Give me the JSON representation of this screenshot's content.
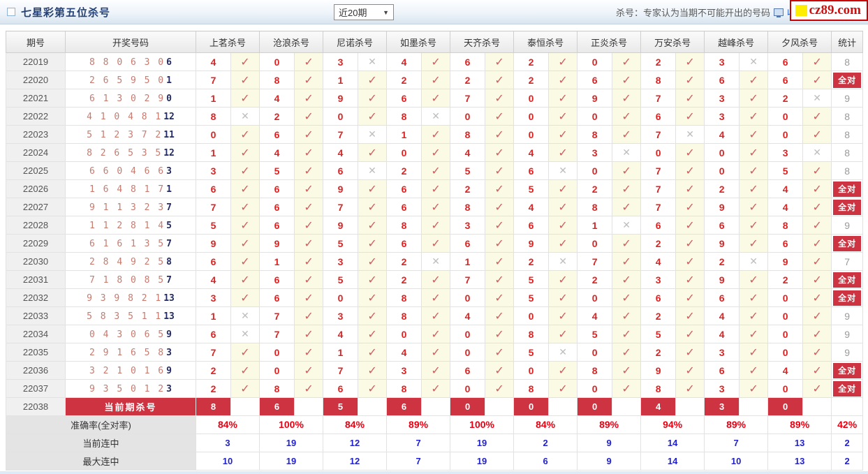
{
  "colors": {
    "accent_red": "#cd3340",
    "kill_number_red": "#dd2222",
    "accuracy_red": "#e60012",
    "streak_blue": "#2222cc",
    "draw_digit_salmon": "#c87a6e",
    "draw_last_navy": "#222a66",
    "hit_cell_bg": "#fbfae4",
    "logo_yellow": "#ffee00",
    "logo_red": "#cc1111"
  },
  "header": {
    "title": "七星彩第五位杀号",
    "period_select_value": "近20期",
    "note": "杀号：专家认为当期不可能开出的号码",
    "favorite_label": "收藏",
    "logo_text": "cz89.com"
  },
  "table": {
    "col_period": "期号",
    "col_draw": "开奖号码",
    "col_stat": "统计",
    "experts": [
      "上茗杀号",
      "沧浪杀号",
      "尼诺杀号",
      "如墨杀号",
      "天齐杀号",
      "泰恒杀号",
      "正炎杀号",
      "万安杀号",
      "越峰杀号",
      "夕风杀号"
    ],
    "all_correct_label": "全对",
    "rows": [
      {
        "period": "22019",
        "draw": "8 8 0 6 3 0",
        "last": "6",
        "kills": [
          "4",
          "0",
          "3",
          "4",
          "6",
          "2",
          "0",
          "2",
          "3",
          "6"
        ],
        "hits": [
          1,
          1,
          0,
          1,
          1,
          1,
          1,
          1,
          0,
          1
        ],
        "stat": "8"
      },
      {
        "period": "22020",
        "draw": "2 6 5 9 5 0",
        "last": "1",
        "kills": [
          "7",
          "8",
          "1",
          "2",
          "2",
          "2",
          "6",
          "8",
          "6",
          "6"
        ],
        "hits": [
          1,
          1,
          1,
          1,
          1,
          1,
          1,
          1,
          1,
          1
        ],
        "stat": "全对"
      },
      {
        "period": "22021",
        "draw": "6 1 3 0 2 9",
        "last": "0",
        "kills": [
          "1",
          "4",
          "9",
          "6",
          "7",
          "0",
          "9",
          "7",
          "3",
          "2"
        ],
        "hits": [
          1,
          1,
          1,
          1,
          1,
          1,
          1,
          1,
          1,
          0
        ],
        "stat": "9"
      },
      {
        "period": "22022",
        "draw": "4 1 0 4 8 1",
        "last": "12",
        "kills": [
          "8",
          "2",
          "0",
          "8",
          "0",
          "0",
          "0",
          "6",
          "3",
          "0"
        ],
        "hits": [
          0,
          1,
          1,
          0,
          1,
          1,
          1,
          1,
          1,
          1
        ],
        "stat": "8"
      },
      {
        "period": "22023",
        "draw": "5 1 2 3 7 2",
        "last": "11",
        "kills": [
          "0",
          "6",
          "7",
          "1",
          "8",
          "0",
          "8",
          "7",
          "4",
          "0"
        ],
        "hits": [
          1,
          1,
          0,
          1,
          1,
          1,
          1,
          0,
          1,
          1
        ],
        "stat": "8"
      },
      {
        "period": "22024",
        "draw": "8 2 6 5 3 5",
        "last": "12",
        "kills": [
          "1",
          "4",
          "4",
          "0",
          "4",
          "4",
          "3",
          "0",
          "0",
          "3"
        ],
        "hits": [
          1,
          1,
          1,
          1,
          1,
          1,
          0,
          1,
          1,
          0
        ],
        "stat": "8"
      },
      {
        "period": "22025",
        "draw": "6 6 0 4 6 6",
        "last": "3",
        "kills": [
          "3",
          "5",
          "6",
          "2",
          "5",
          "6",
          "0",
          "7",
          "0",
          "5"
        ],
        "hits": [
          1,
          1,
          0,
          1,
          1,
          0,
          1,
          1,
          1,
          1
        ],
        "stat": "8"
      },
      {
        "period": "22026",
        "draw": "1 6 4 8 1 7",
        "last": "1",
        "kills": [
          "6",
          "6",
          "9",
          "6",
          "2",
          "5",
          "2",
          "7",
          "2",
          "4"
        ],
        "hits": [
          1,
          1,
          1,
          1,
          1,
          1,
          1,
          1,
          1,
          1
        ],
        "stat": "全对"
      },
      {
        "period": "22027",
        "draw": "9 1 1 3 2 3",
        "last": "7",
        "kills": [
          "7",
          "6",
          "7",
          "6",
          "8",
          "4",
          "8",
          "7",
          "9",
          "4"
        ],
        "hits": [
          1,
          1,
          1,
          1,
          1,
          1,
          1,
          1,
          1,
          1
        ],
        "stat": "全对"
      },
      {
        "period": "22028",
        "draw": "1 1 2 8 1 4",
        "last": "5",
        "kills": [
          "5",
          "6",
          "9",
          "8",
          "3",
          "6",
          "1",
          "6",
          "6",
          "8"
        ],
        "hits": [
          1,
          1,
          1,
          1,
          1,
          1,
          0,
          1,
          1,
          1
        ],
        "stat": "9"
      },
      {
        "period": "22029",
        "draw": "6 1 6 1 3 5",
        "last": "7",
        "kills": [
          "9",
          "9",
          "5",
          "6",
          "6",
          "9",
          "0",
          "2",
          "9",
          "6"
        ],
        "hits": [
          1,
          1,
          1,
          1,
          1,
          1,
          1,
          1,
          1,
          1
        ],
        "stat": "全对"
      },
      {
        "period": "22030",
        "draw": "2 8 4 9 2 5",
        "last": "8",
        "kills": [
          "6",
          "1",
          "3",
          "2",
          "1",
          "2",
          "7",
          "4",
          "2",
          "9"
        ],
        "hits": [
          1,
          1,
          1,
          0,
          1,
          0,
          1,
          1,
          0,
          1
        ],
        "stat": "7"
      },
      {
        "period": "22031",
        "draw": "7 1 8 0 8 5",
        "last": "7",
        "kills": [
          "4",
          "6",
          "5",
          "2",
          "7",
          "5",
          "2",
          "3",
          "9",
          "2"
        ],
        "hits": [
          1,
          1,
          1,
          1,
          1,
          1,
          1,
          1,
          1,
          1
        ],
        "stat": "全对"
      },
      {
        "period": "22032",
        "draw": "9 3 9 8 2 1",
        "last": "13",
        "kills": [
          "3",
          "6",
          "0",
          "8",
          "0",
          "5",
          "0",
          "6",
          "6",
          "0"
        ],
        "hits": [
          1,
          1,
          1,
          1,
          1,
          1,
          1,
          1,
          1,
          1
        ],
        "stat": "全对"
      },
      {
        "period": "22033",
        "draw": "5 8 3 5 1 1",
        "last": "13",
        "kills": [
          "1",
          "7",
          "3",
          "8",
          "4",
          "0",
          "4",
          "2",
          "4",
          "0"
        ],
        "hits": [
          0,
          1,
          1,
          1,
          1,
          1,
          1,
          1,
          1,
          1
        ],
        "stat": "9"
      },
      {
        "period": "22034",
        "draw": "0 4 3 0 6 5",
        "last": "9",
        "kills": [
          "6",
          "7",
          "4",
          "0",
          "0",
          "8",
          "5",
          "5",
          "4",
          "0"
        ],
        "hits": [
          0,
          1,
          1,
          1,
          1,
          1,
          1,
          1,
          1,
          1
        ],
        "stat": "9"
      },
      {
        "period": "22035",
        "draw": "2 9 1 6 5 8",
        "last": "3",
        "kills": [
          "7",
          "0",
          "1",
          "4",
          "0",
          "5",
          "0",
          "2",
          "3",
          "0"
        ],
        "hits": [
          1,
          1,
          1,
          1,
          1,
          0,
          1,
          1,
          1,
          1
        ],
        "stat": "9"
      },
      {
        "period": "22036",
        "draw": "3 2 1 0 1 6",
        "last": "9",
        "kills": [
          "2",
          "0",
          "7",
          "3",
          "6",
          "0",
          "8",
          "9",
          "6",
          "4"
        ],
        "hits": [
          1,
          1,
          1,
          1,
          1,
          1,
          1,
          1,
          1,
          1
        ],
        "stat": "全对"
      },
      {
        "period": "22037",
        "draw": "9 3 5 0 1 2",
        "last": "3",
        "kills": [
          "2",
          "8",
          "6",
          "8",
          "0",
          "8",
          "0",
          "8",
          "3",
          "0"
        ],
        "hits": [
          1,
          1,
          1,
          1,
          1,
          1,
          1,
          1,
          1,
          1
        ],
        "stat": "全对"
      }
    ],
    "current_row": {
      "period": "22038",
      "label": "当前期杀号",
      "kills": [
        "8",
        "6",
        "5",
        "6",
        "0",
        "0",
        "0",
        "4",
        "3",
        "0"
      ]
    },
    "footer_rows": [
      {
        "label": "准确率(全对率)",
        "style": "red",
        "values": [
          "84%",
          "100%",
          "84%",
          "89%",
          "100%",
          "84%",
          "89%",
          "94%",
          "89%",
          "89%"
        ],
        "stat": "42%"
      },
      {
        "label": "当前连中",
        "style": "blue",
        "values": [
          "3",
          "19",
          "12",
          "7",
          "19",
          "2",
          "9",
          "14",
          "7",
          "13"
        ],
        "stat": "2"
      },
      {
        "label": "最大连中",
        "style": "blue",
        "values": [
          "10",
          "19",
          "12",
          "7",
          "19",
          "6",
          "9",
          "14",
          "10",
          "13"
        ],
        "stat": "2"
      }
    ]
  }
}
